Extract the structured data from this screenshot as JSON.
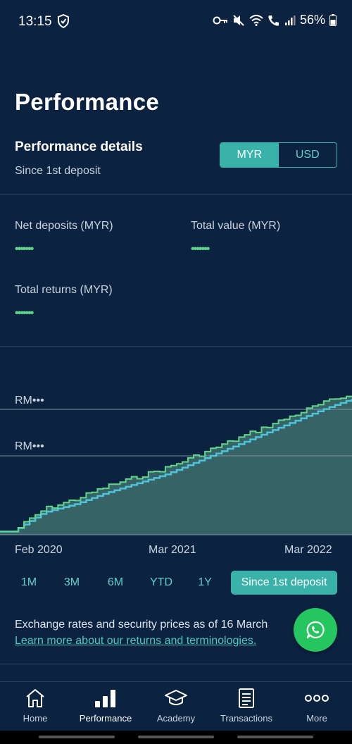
{
  "status_bar": {
    "time": "13:15",
    "battery": "56%"
  },
  "page": {
    "title": "Performance"
  },
  "details": {
    "title": "Performance details",
    "subtitle": "Since 1st deposit",
    "currency_options": [
      "MYR",
      "USD"
    ],
    "selected_currency": "MYR"
  },
  "metrics": {
    "net_deposits": {
      "label": "Net deposits (MYR)",
      "value": "•••••••"
    },
    "total_value": {
      "label": "Total value (MYR)",
      "value": "•••••••"
    },
    "total_returns": {
      "label": "Total returns (MYR)",
      "value": "•••••••"
    }
  },
  "chart": {
    "gridline_labels": [
      "RM•••",
      "RM•••"
    ],
    "x_labels": [
      "Feb 2020",
      "Mar 2021",
      "Mar 2022"
    ],
    "colors": {
      "total_value_line": "#5fd68a",
      "deposits_line": "#4fc3d9",
      "fill": "#3f6f6d",
      "background": "#0b2341"
    }
  },
  "chart_data": {
    "type": "area",
    "x_labels": [
      "Feb 2020",
      "Mar 2021",
      "Mar 2022"
    ],
    "y_labels": [
      "RM•••",
      "RM•••"
    ],
    "series": [
      {
        "color": "#5fd68a",
        "values": [
          0.02,
          0.16,
          0.22,
          0.3,
          0.36,
          0.42,
          0.5,
          0.58,
          0.66,
          0.74,
          0.82,
          0.88
        ]
      },
      {
        "color": "#4fc3d9",
        "values": [
          0.02,
          0.14,
          0.19,
          0.26,
          0.32,
          0.38,
          0.46,
          0.54,
          0.62,
          0.7,
          0.78,
          0.85
        ]
      }
    ]
  },
  "ranges": {
    "options": [
      "1M",
      "3M",
      "6M",
      "YTD",
      "1Y",
      "Since 1st deposit"
    ],
    "selected": "Since 1st deposit"
  },
  "footnote": {
    "text": "Exchange rates and security prices as of 16 March",
    "link": "Learn more about our returns and terminologies."
  },
  "nav": {
    "items": [
      {
        "label": "Home",
        "icon": "home-icon"
      },
      {
        "label": "Performance",
        "icon": "bar-chart-icon"
      },
      {
        "label": "Academy",
        "icon": "graduation-cap-icon"
      },
      {
        "label": "Transactions",
        "icon": "document-icon"
      },
      {
        "label": "More",
        "icon": "more-icon"
      }
    ],
    "active": "Performance"
  }
}
